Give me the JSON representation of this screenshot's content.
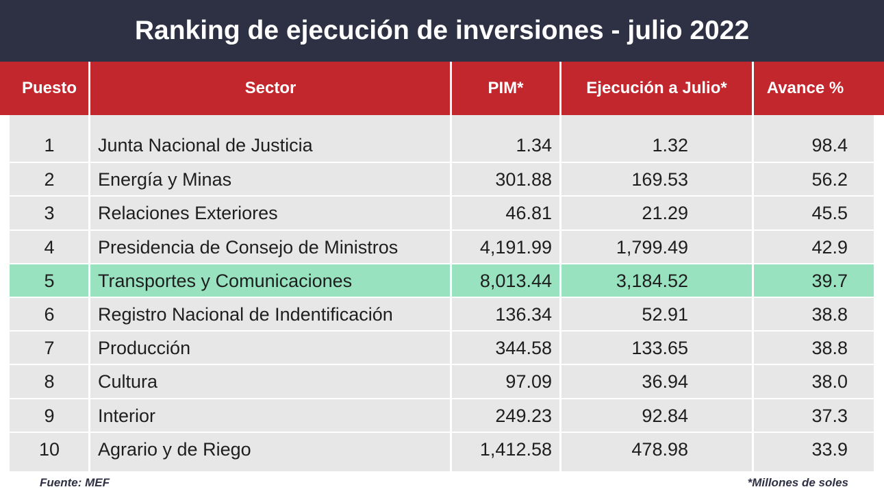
{
  "title": "Ranking de ejecución de inversiones - julio 2022",
  "chart_data": {
    "type": "table",
    "columns": [
      "Puesto",
      "Sector",
      "PIM*",
      "Ejecución a Julio*",
      "Avance %"
    ],
    "rows": [
      {
        "puesto": "1",
        "sector": "Junta Nacional de Justicia",
        "pim": "1.34",
        "ejecucion": "1.32",
        "avance": "98.4"
      },
      {
        "puesto": "2",
        "sector": "Energía y Minas",
        "pim": "301.88",
        "ejecucion": "169.53",
        "avance": "56.2"
      },
      {
        "puesto": "3",
        "sector": "Relaciones Exteriores",
        "pim": "46.81",
        "ejecucion": "21.29",
        "avance": "45.5"
      },
      {
        "puesto": "4",
        "sector": "Presidencia de Consejo de Ministros",
        "pim": "4,191.99",
        "ejecucion": "1,799.49",
        "avance": "42.9"
      },
      {
        "puesto": "5",
        "sector": "Transportes y Comunicaciones",
        "pim": "8,013.44",
        "ejecucion": "3,184.52",
        "avance": "39.7"
      },
      {
        "puesto": "6",
        "sector": "Registro Nacional de Indentificación",
        "pim": "136.34",
        "ejecucion": "52.91",
        "avance": "38.8"
      },
      {
        "puesto": "7",
        "sector": "Producción",
        "pim": "344.58",
        "ejecucion": "133.65",
        "avance": "38.8"
      },
      {
        "puesto": "8",
        "sector": "Cultura",
        "pim": "97.09",
        "ejecucion": "36.94",
        "avance": "38.0"
      },
      {
        "puesto": "9",
        "sector": "Interior",
        "pim": "249.23",
        "ejecucion": "92.84",
        "avance": "37.3"
      },
      {
        "puesto": "10",
        "sector": "Agrario y de Riego",
        "pim": "1,412.58",
        "ejecucion": "478.98",
        "avance": "33.9"
      }
    ],
    "highlighted_row": 4
  },
  "colors": {
    "title_bg": "#2e3044",
    "header_bg": "#c1272d",
    "body_bg": "#e7e7e7",
    "highlight": "#98e2c0"
  },
  "footer": {
    "source": "Fuente: MEF",
    "note": "*Millones de soles"
  }
}
